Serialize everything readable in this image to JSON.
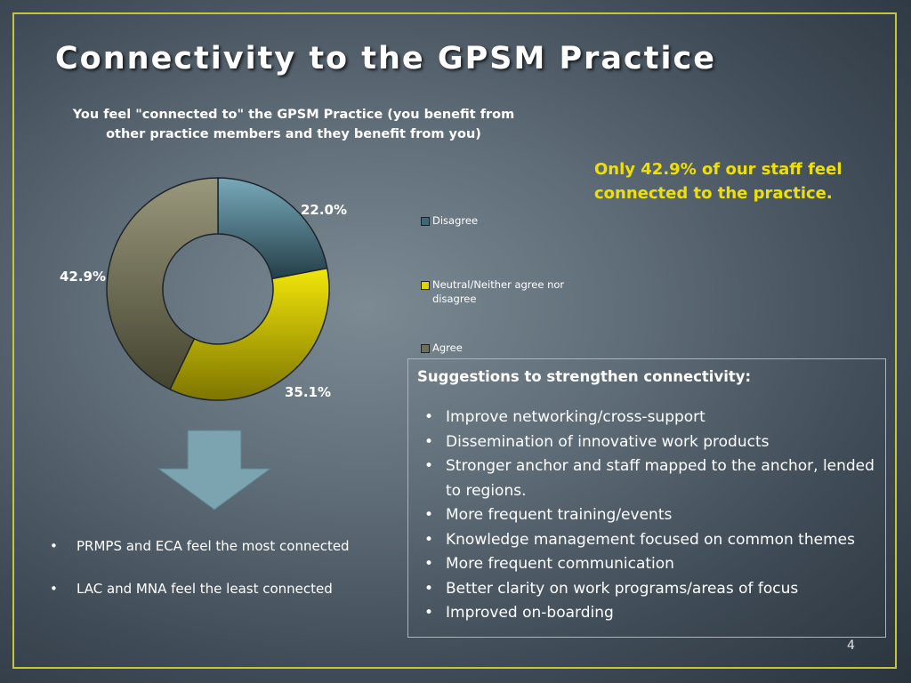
{
  "slide": {
    "title": "Connectivity to the GPSM Practice",
    "highlight": "Only 42.9% of our staff feel connected to the practice.",
    "page_number": "4"
  },
  "chart_data": {
    "type": "pie",
    "donut": true,
    "title": "You feel \"connected to\" the GPSM Practice (you benefit from other practice members and they benefit from you)",
    "categories": [
      "Disagree",
      "Neutral/Neither agree nor disagree",
      "Agree"
    ],
    "values": [
      22.0,
      35.1,
      42.9
    ],
    "labels": [
      "22.0%",
      "35.1%",
      "42.9%"
    ],
    "colors": [
      "#3e6877",
      "#e0d100",
      "#6f6e58"
    ],
    "legend_position": "right"
  },
  "left_bullets": [
    "PRMPS and ECA feel the most connected",
    "LAC and MNA feel the least connected"
  ],
  "suggestions": {
    "heading": "Suggestions to strengthen connectivity:",
    "items": [
      "Improve networking/cross-support",
      "Dissemination of innovative work products",
      "Stronger anchor and staff mapped to the anchor, lended to regions.",
      "More frequent training/events",
      "Knowledge management focused on common themes",
      "More frequent communication",
      "Better clarity on work programs/areas of focus",
      "Improved on-boarding"
    ]
  },
  "icons": {
    "arrow": "down-arrow-icon"
  }
}
